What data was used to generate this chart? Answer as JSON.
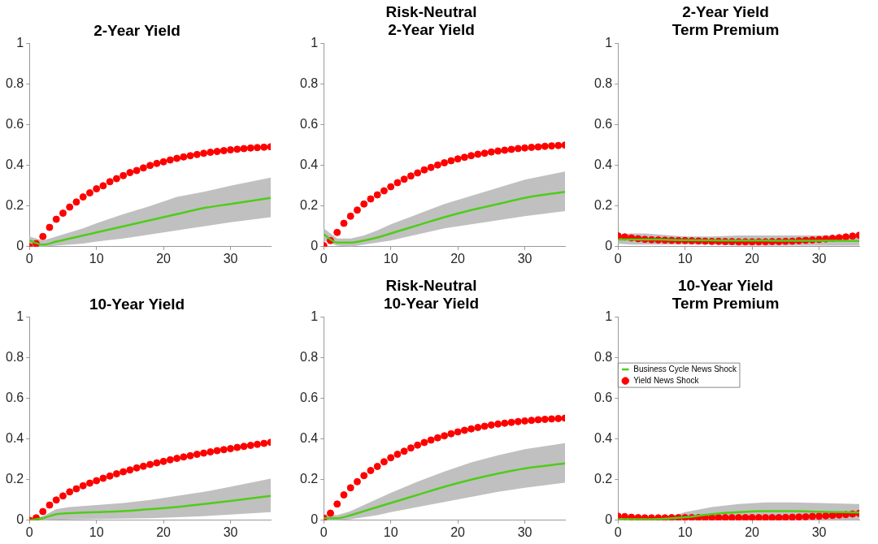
{
  "chart_data": [
    {
      "type": "scatter",
      "title": "2-Year Yield",
      "x": [
        0,
        1,
        2,
        3,
        4,
        5,
        6,
        7,
        8,
        9,
        10,
        11,
        12,
        13,
        14,
        15,
        16,
        17,
        18,
        19,
        20,
        21,
        22,
        23,
        24,
        25,
        26,
        27,
        28,
        29,
        30,
        31,
        32,
        33,
        34,
        35,
        36
      ],
      "xlim": [
        0,
        36
      ],
      "xticks": [
        0,
        10,
        20,
        30
      ],
      "ylim": [
        0,
        1
      ],
      "yticks": [
        0,
        0.2,
        0.4,
        0.6,
        0.8,
        1
      ],
      "grid": false,
      "legend": false,
      "series": [
        {
          "type": "scatter",
          "marker": "circle",
          "color": "#ff0000",
          "values": [
            0,
            0.015,
            0.05,
            0.095,
            0.135,
            0.165,
            0.195,
            0.22,
            0.245,
            0.265,
            0.285,
            0.3,
            0.32,
            0.335,
            0.35,
            0.365,
            0.375,
            0.388,
            0.4,
            0.41,
            0.418,
            0.427,
            0.435,
            0.442,
            0.448,
            0.454,
            0.46,
            0.465,
            0.469,
            0.473,
            0.477,
            0.48,
            0.483,
            0.486,
            0.488,
            0.49,
            0.492
          ]
        },
        {
          "type": "line",
          "marker": "none",
          "color": "#4fcc1a",
          "x": [
            0,
            2,
            4,
            6,
            8,
            10,
            14,
            18,
            22,
            26,
            30,
            36
          ],
          "values": [
            0.03,
            0.01,
            0.025,
            0.04,
            0.055,
            0.07,
            0.1,
            0.13,
            0.16,
            0.19,
            0.21,
            0.24
          ],
          "lower": [
            0.01,
            0,
            0.005,
            0.01,
            0.015,
            0.025,
            0.04,
            0.06,
            0.08,
            0.1,
            0.12,
            0.145
          ],
          "upper": [
            0.05,
            0.03,
            0.05,
            0.07,
            0.09,
            0.115,
            0.16,
            0.2,
            0.245,
            0.27,
            0.3,
            0.34
          ]
        }
      ]
    },
    {
      "type": "scatter",
      "title": "Risk-Neutral\n2-Year Yield",
      "x": [
        0,
        1,
        2,
        3,
        4,
        5,
        6,
        7,
        8,
        9,
        10,
        11,
        12,
        13,
        14,
        15,
        16,
        17,
        18,
        19,
        20,
        21,
        22,
        23,
        24,
        25,
        26,
        27,
        28,
        29,
        30,
        31,
        32,
        33,
        34,
        35,
        36
      ],
      "xlim": [
        0,
        36
      ],
      "xticks": [
        0,
        10,
        20,
        30
      ],
      "ylim": [
        0,
        1
      ],
      "yticks": [
        0,
        0.2,
        0.4,
        0.6,
        0.8,
        1
      ],
      "grid": false,
      "legend": false,
      "series": [
        {
          "type": "scatter",
          "marker": "circle",
          "color": "#ff0000",
          "values": [
            0.005,
            0.03,
            0.07,
            0.115,
            0.15,
            0.18,
            0.21,
            0.235,
            0.255,
            0.275,
            0.295,
            0.315,
            0.332,
            0.348,
            0.363,
            0.378,
            0.39,
            0.402,
            0.413,
            0.423,
            0.432,
            0.44,
            0.448,
            0.455,
            0.46,
            0.466,
            0.471,
            0.475,
            0.479,
            0.483,
            0.486,
            0.489,
            0.491,
            0.494,
            0.496,
            0.498,
            0.5
          ]
        },
        {
          "type": "line",
          "marker": "none",
          "color": "#4fcc1a",
          "x": [
            0,
            2,
            4,
            6,
            8,
            10,
            14,
            18,
            22,
            26,
            30,
            36
          ],
          "values": [
            0.06,
            0.02,
            0.02,
            0.03,
            0.045,
            0.065,
            0.105,
            0.145,
            0.18,
            0.21,
            0.24,
            0.27
          ],
          "lower": [
            0.03,
            0.005,
            0,
            0.01,
            0.02,
            0.03,
            0.06,
            0.09,
            0.11,
            0.13,
            0.15,
            0.175
          ],
          "upper": [
            0.09,
            0.04,
            0.04,
            0.055,
            0.08,
            0.11,
            0.16,
            0.21,
            0.25,
            0.29,
            0.33,
            0.37
          ]
        }
      ]
    },
    {
      "type": "scatter",
      "title": "2-Year Yield\nTerm Premium",
      "x": [
        0,
        1,
        2,
        3,
        4,
        5,
        6,
        7,
        8,
        9,
        10,
        11,
        12,
        13,
        14,
        15,
        16,
        17,
        18,
        19,
        20,
        21,
        22,
        23,
        24,
        25,
        26,
        27,
        28,
        29,
        30,
        31,
        32,
        33,
        34,
        35,
        36
      ],
      "xlim": [
        0,
        36
      ],
      "xticks": [
        0,
        10,
        20,
        30
      ],
      "ylim": [
        0,
        1
      ],
      "yticks": [
        0,
        0.2,
        0.4,
        0.6,
        0.8,
        1
      ],
      "grid": false,
      "legend": false,
      "series": [
        {
          "type": "scatter",
          "marker": "circle",
          "color": "#ff0000",
          "values": [
            0.053,
            0.048,
            0.043,
            0.039,
            0.036,
            0.034,
            0.033,
            0.032,
            0.031,
            0.03,
            0.03,
            0.029,
            0.028,
            0.027,
            0.026,
            0.026,
            0.025,
            0.025,
            0.024,
            0.024,
            0.024,
            0.024,
            0.024,
            0.025,
            0.025,
            0.026,
            0.027,
            0.029,
            0.031,
            0.033,
            0.035,
            0.038,
            0.041,
            0.044,
            0.048,
            0.052,
            0.056
          ]
        },
        {
          "type": "line",
          "marker": "none",
          "color": "#4fcc1a",
          "x": [
            0,
            2,
            4,
            6,
            8,
            10,
            14,
            18,
            22,
            26,
            30,
            36
          ],
          "values": [
            0.035,
            0.035,
            0.035,
            0.035,
            0.033,
            0.032,
            0.031,
            0.03,
            0.03,
            0.029,
            0.029,
            0.028
          ],
          "lower": [
            0.015,
            0.01,
            0.01,
            0.01,
            0.01,
            0.01,
            0.01,
            0.005,
            0.005,
            0.005,
            0.005,
            0.005
          ],
          "upper": [
            0.06,
            0.065,
            0.065,
            0.06,
            0.055,
            0.05,
            0.05,
            0.055,
            0.055,
            0.055,
            0.055,
            0.055
          ]
        }
      ]
    },
    {
      "type": "scatter",
      "title": "10-Year Yield",
      "x": [
        0,
        1,
        2,
        3,
        4,
        5,
        6,
        7,
        8,
        9,
        10,
        11,
        12,
        13,
        14,
        15,
        16,
        17,
        18,
        19,
        20,
        21,
        22,
        23,
        24,
        25,
        26,
        27,
        28,
        29,
        30,
        31,
        32,
        33,
        34,
        35,
        36
      ],
      "xlim": [
        0,
        36
      ],
      "xticks": [
        0,
        10,
        20,
        30
      ],
      "ylim": [
        0,
        1
      ],
      "yticks": [
        0,
        0.2,
        0.4,
        0.6,
        0.8,
        1
      ],
      "grid": false,
      "legend": false,
      "series": [
        {
          "type": "scatter",
          "marker": "circle",
          "color": "#ff0000",
          "values": [
            0,
            0.012,
            0.043,
            0.075,
            0.1,
            0.12,
            0.14,
            0.155,
            0.17,
            0.183,
            0.195,
            0.207,
            0.218,
            0.229,
            0.239,
            0.248,
            0.258,
            0.266,
            0.275,
            0.283,
            0.29,
            0.298,
            0.305,
            0.312,
            0.318,
            0.325,
            0.331,
            0.337,
            0.343,
            0.348,
            0.353,
            0.359,
            0.364,
            0.369,
            0.374,
            0.379,
            0.384
          ]
        },
        {
          "type": "line",
          "marker": "none",
          "color": "#4fcc1a",
          "x": [
            0,
            2,
            4,
            6,
            8,
            10,
            14,
            18,
            22,
            26,
            30,
            36
          ],
          "values": [
            0,
            0.01,
            0.03,
            0.035,
            0.038,
            0.04,
            0.045,
            0.055,
            0.065,
            0.08,
            0.095,
            0.12
          ],
          "lower": [
            0,
            0,
            0.002,
            0.004,
            0.005,
            0.006,
            0.008,
            0.01,
            0.015,
            0.02,
            0.028,
            0.04
          ],
          "upper": [
            0.005,
            0.02,
            0.055,
            0.065,
            0.07,
            0.075,
            0.085,
            0.1,
            0.12,
            0.14,
            0.165,
            0.205
          ]
        }
      ]
    },
    {
      "type": "scatter",
      "title": "Risk-Neutral\n10-Year Yield",
      "x": [
        0,
        1,
        2,
        3,
        4,
        5,
        6,
        7,
        8,
        9,
        10,
        11,
        12,
        13,
        14,
        15,
        16,
        17,
        18,
        19,
        20,
        21,
        22,
        23,
        24,
        25,
        26,
        27,
        28,
        29,
        30,
        31,
        32,
        33,
        34,
        35,
        36
      ],
      "xlim": [
        0,
        36
      ],
      "xticks": [
        0,
        10,
        20,
        30
      ],
      "ylim": [
        0,
        1
      ],
      "yticks": [
        0,
        0.2,
        0.4,
        0.6,
        0.8,
        1
      ],
      "grid": false,
      "legend": false,
      "series": [
        {
          "type": "scatter",
          "marker": "circle",
          "color": "#ff0000",
          "values": [
            0.01,
            0.035,
            0.08,
            0.125,
            0.16,
            0.19,
            0.22,
            0.245,
            0.265,
            0.288,
            0.308,
            0.325,
            0.34,
            0.356,
            0.37,
            0.383,
            0.395,
            0.406,
            0.416,
            0.426,
            0.435,
            0.443,
            0.45,
            0.457,
            0.463,
            0.469,
            0.474,
            0.478,
            0.482,
            0.486,
            0.489,
            0.492,
            0.495,
            0.497,
            0.499,
            0.501,
            0.503
          ]
        },
        {
          "type": "line",
          "marker": "none",
          "color": "#4fcc1a",
          "x": [
            0,
            2,
            4,
            6,
            8,
            10,
            14,
            18,
            22,
            26,
            30,
            36
          ],
          "values": [
            0.01,
            0.01,
            0.025,
            0.045,
            0.065,
            0.085,
            0.125,
            0.165,
            0.2,
            0.23,
            0.255,
            0.28
          ],
          "lower": [
            0,
            0,
            0.005,
            0.015,
            0.025,
            0.04,
            0.065,
            0.09,
            0.115,
            0.14,
            0.16,
            0.185
          ],
          "upper": [
            0.03,
            0.025,
            0.045,
            0.075,
            0.105,
            0.135,
            0.19,
            0.24,
            0.285,
            0.32,
            0.35,
            0.38
          ]
        }
      ]
    },
    {
      "type": "scatter",
      "title": "10-Year Yield\nTerm Premium",
      "x": [
        0,
        1,
        2,
        3,
        4,
        5,
        6,
        7,
        8,
        9,
        10,
        11,
        12,
        13,
        14,
        15,
        16,
        17,
        18,
        19,
        20,
        21,
        22,
        23,
        24,
        25,
        26,
        27,
        28,
        29,
        30,
        31,
        32,
        33,
        34,
        35,
        36
      ],
      "xlim": [
        0,
        36
      ],
      "xticks": [
        0,
        10,
        20,
        30
      ],
      "ylim": [
        0,
        1
      ],
      "yticks": [
        0,
        0.2,
        0.4,
        0.6,
        0.8,
        1
      ],
      "grid": false,
      "legend": "top",
      "series": [
        {
          "name": "Yield News Shock",
          "type": "scatter",
          "marker": "circle",
          "color": "#ff0000",
          "values": [
            0.02,
            0.018,
            0.015,
            0.013,
            0.012,
            0.012,
            0.012,
            0.012,
            0.013,
            0.013,
            0.013,
            0.013,
            0.013,
            0.013,
            0.013,
            0.013,
            0.013,
            0.013,
            0.013,
            0.013,
            0.013,
            0.013,
            0.013,
            0.013,
            0.013,
            0.014,
            0.015,
            0.016,
            0.017,
            0.019,
            0.02,
            0.022,
            0.024,
            0.026,
            0.028,
            0.031,
            0.034
          ]
        },
        {
          "name": "Business Cycle News Shock",
          "type": "line",
          "marker": "none",
          "color": "#4fcc1a",
          "x": [
            0,
            2,
            4,
            6,
            8,
            10,
            14,
            18,
            22,
            26,
            30,
            36
          ],
          "values": [
            0.005,
            0.005,
            0.005,
            0.006,
            0.01,
            0.015,
            0.03,
            0.04,
            0.045,
            0.045,
            0.042,
            0.038
          ],
          "lower": [
            0,
            0,
            0,
            0,
            0,
            0,
            0,
            0,
            0,
            0,
            0,
            0
          ],
          "upper": [
            0.01,
            0.01,
            0.01,
            0.012,
            0.02,
            0.04,
            0.065,
            0.08,
            0.088,
            0.088,
            0.085,
            0.08
          ]
        }
      ]
    }
  ]
}
